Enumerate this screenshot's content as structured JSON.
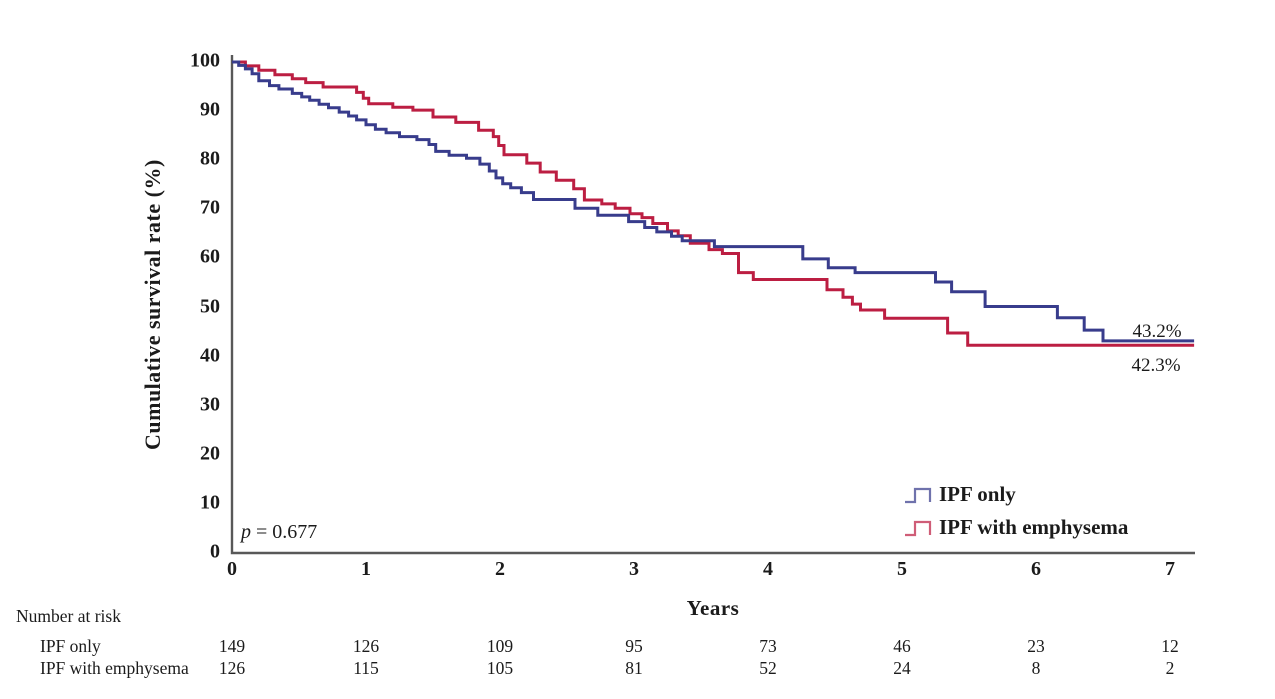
{
  "chart_data": {
    "type": "line",
    "subtype": "kaplan-meier-step-curves",
    "title": "",
    "xlabel": "Years",
    "ylabel": "Cumulative survival rate (%)",
    "xlim": [
      0,
      7.18
    ],
    "ylim": [
      0,
      100
    ],
    "x_ticks": [
      0,
      1,
      2,
      3,
      4,
      5,
      6,
      7
    ],
    "y_ticks": [
      0,
      10,
      20,
      30,
      40,
      50,
      60,
      70,
      80,
      90,
      100
    ],
    "grid": false,
    "axis_color": "#585858",
    "p_label": {
      "symbol": "p",
      "rest": " = 0.677"
    },
    "legend_position": "lower right",
    "series": [
      {
        "name": "IPF only",
        "color": "#383c8c",
        "final_label": "43.2%",
        "points": [
          [
            0,
            100
          ],
          [
            0.05,
            99.3
          ],
          [
            0.1,
            98.6
          ],
          [
            0.15,
            97.6
          ],
          [
            0.2,
            96.2
          ],
          [
            0.28,
            95.2
          ],
          [
            0.35,
            94.5
          ],
          [
            0.45,
            93.6
          ],
          [
            0.52,
            92.9
          ],
          [
            0.58,
            92.2
          ],
          [
            0.65,
            91.4
          ],
          [
            0.72,
            90.7
          ],
          [
            0.8,
            89.8
          ],
          [
            0.87,
            89.0
          ],
          [
            0.93,
            88.2
          ],
          [
            1.0,
            87.2
          ],
          [
            1.07,
            86.3
          ],
          [
            1.15,
            85.6
          ],
          [
            1.25,
            84.8
          ],
          [
            1.38,
            84.2
          ],
          [
            1.47,
            83.2
          ],
          [
            1.52,
            81.8
          ],
          [
            1.62,
            81.0
          ],
          [
            1.75,
            80.4
          ],
          [
            1.85,
            79.2
          ],
          [
            1.92,
            77.8
          ],
          [
            1.97,
            76.4
          ],
          [
            2.02,
            75.2
          ],
          [
            2.08,
            74.4
          ],
          [
            2.16,
            73.4
          ],
          [
            2.25,
            72.0
          ],
          [
            2.56,
            70.2
          ],
          [
            2.73,
            68.8
          ],
          [
            2.96,
            67.5
          ],
          [
            3.08,
            66.3
          ],
          [
            3.17,
            65.4
          ],
          [
            3.28,
            64.5
          ],
          [
            3.36,
            63.6
          ],
          [
            3.6,
            62.4
          ],
          [
            4.26,
            59.9
          ],
          [
            4.45,
            58.1
          ],
          [
            4.65,
            57.1
          ],
          [
            5.25,
            55.2
          ],
          [
            5.37,
            53.2
          ],
          [
            5.62,
            50.2
          ],
          [
            6.16,
            47.9
          ],
          [
            6.36,
            45.4
          ],
          [
            6.5,
            43.2
          ]
        ]
      },
      {
        "name": "IPF with emphysema",
        "color": "#bc1e42",
        "final_label": "42.3%",
        "points": [
          [
            0,
            100
          ],
          [
            0.1,
            99.2
          ],
          [
            0.2,
            98.3
          ],
          [
            0.32,
            97.4
          ],
          [
            0.45,
            96.6
          ],
          [
            0.55,
            95.8
          ],
          [
            0.68,
            94.9
          ],
          [
            0.93,
            93.8
          ],
          [
            0.98,
            92.6
          ],
          [
            1.02,
            91.5
          ],
          [
            1.2,
            90.8
          ],
          [
            1.35,
            90.2
          ],
          [
            1.5,
            88.8
          ],
          [
            1.67,
            87.7
          ],
          [
            1.84,
            86.1
          ],
          [
            1.95,
            84.8
          ],
          [
            1.99,
            83.0
          ],
          [
            2.03,
            81.1
          ],
          [
            2.2,
            79.4
          ],
          [
            2.3,
            77.6
          ],
          [
            2.42,
            75.9
          ],
          [
            2.55,
            74.2
          ],
          [
            2.63,
            71.9
          ],
          [
            2.76,
            71.1
          ],
          [
            2.86,
            70.2
          ],
          [
            2.97,
            69.1
          ],
          [
            3.06,
            68.3
          ],
          [
            3.14,
            67.1
          ],
          [
            3.25,
            65.6
          ],
          [
            3.33,
            64.6
          ],
          [
            3.42,
            63.1
          ],
          [
            3.56,
            61.8
          ],
          [
            3.66,
            61.0
          ],
          [
            3.78,
            57.1
          ],
          [
            3.89,
            55.7
          ],
          [
            4.44,
            53.6
          ],
          [
            4.56,
            52.1
          ],
          [
            4.63,
            50.7
          ],
          [
            4.69,
            49.5
          ],
          [
            4.87,
            47.8
          ],
          [
            5.34,
            44.8
          ],
          [
            5.49,
            42.3
          ]
        ]
      }
    ],
    "number_at_risk": {
      "title": "Number at risk",
      "time_points": [
        0,
        1,
        2,
        3,
        4,
        5,
        6,
        7
      ],
      "rows": [
        {
          "label": "IPF only",
          "values": [
            149,
            126,
            109,
            95,
            73,
            46,
            23,
            12
          ]
        },
        {
          "label": "IPF with emphysema",
          "values": [
            126,
            115,
            105,
            81,
            52,
            24,
            8,
            2
          ]
        }
      ]
    }
  }
}
